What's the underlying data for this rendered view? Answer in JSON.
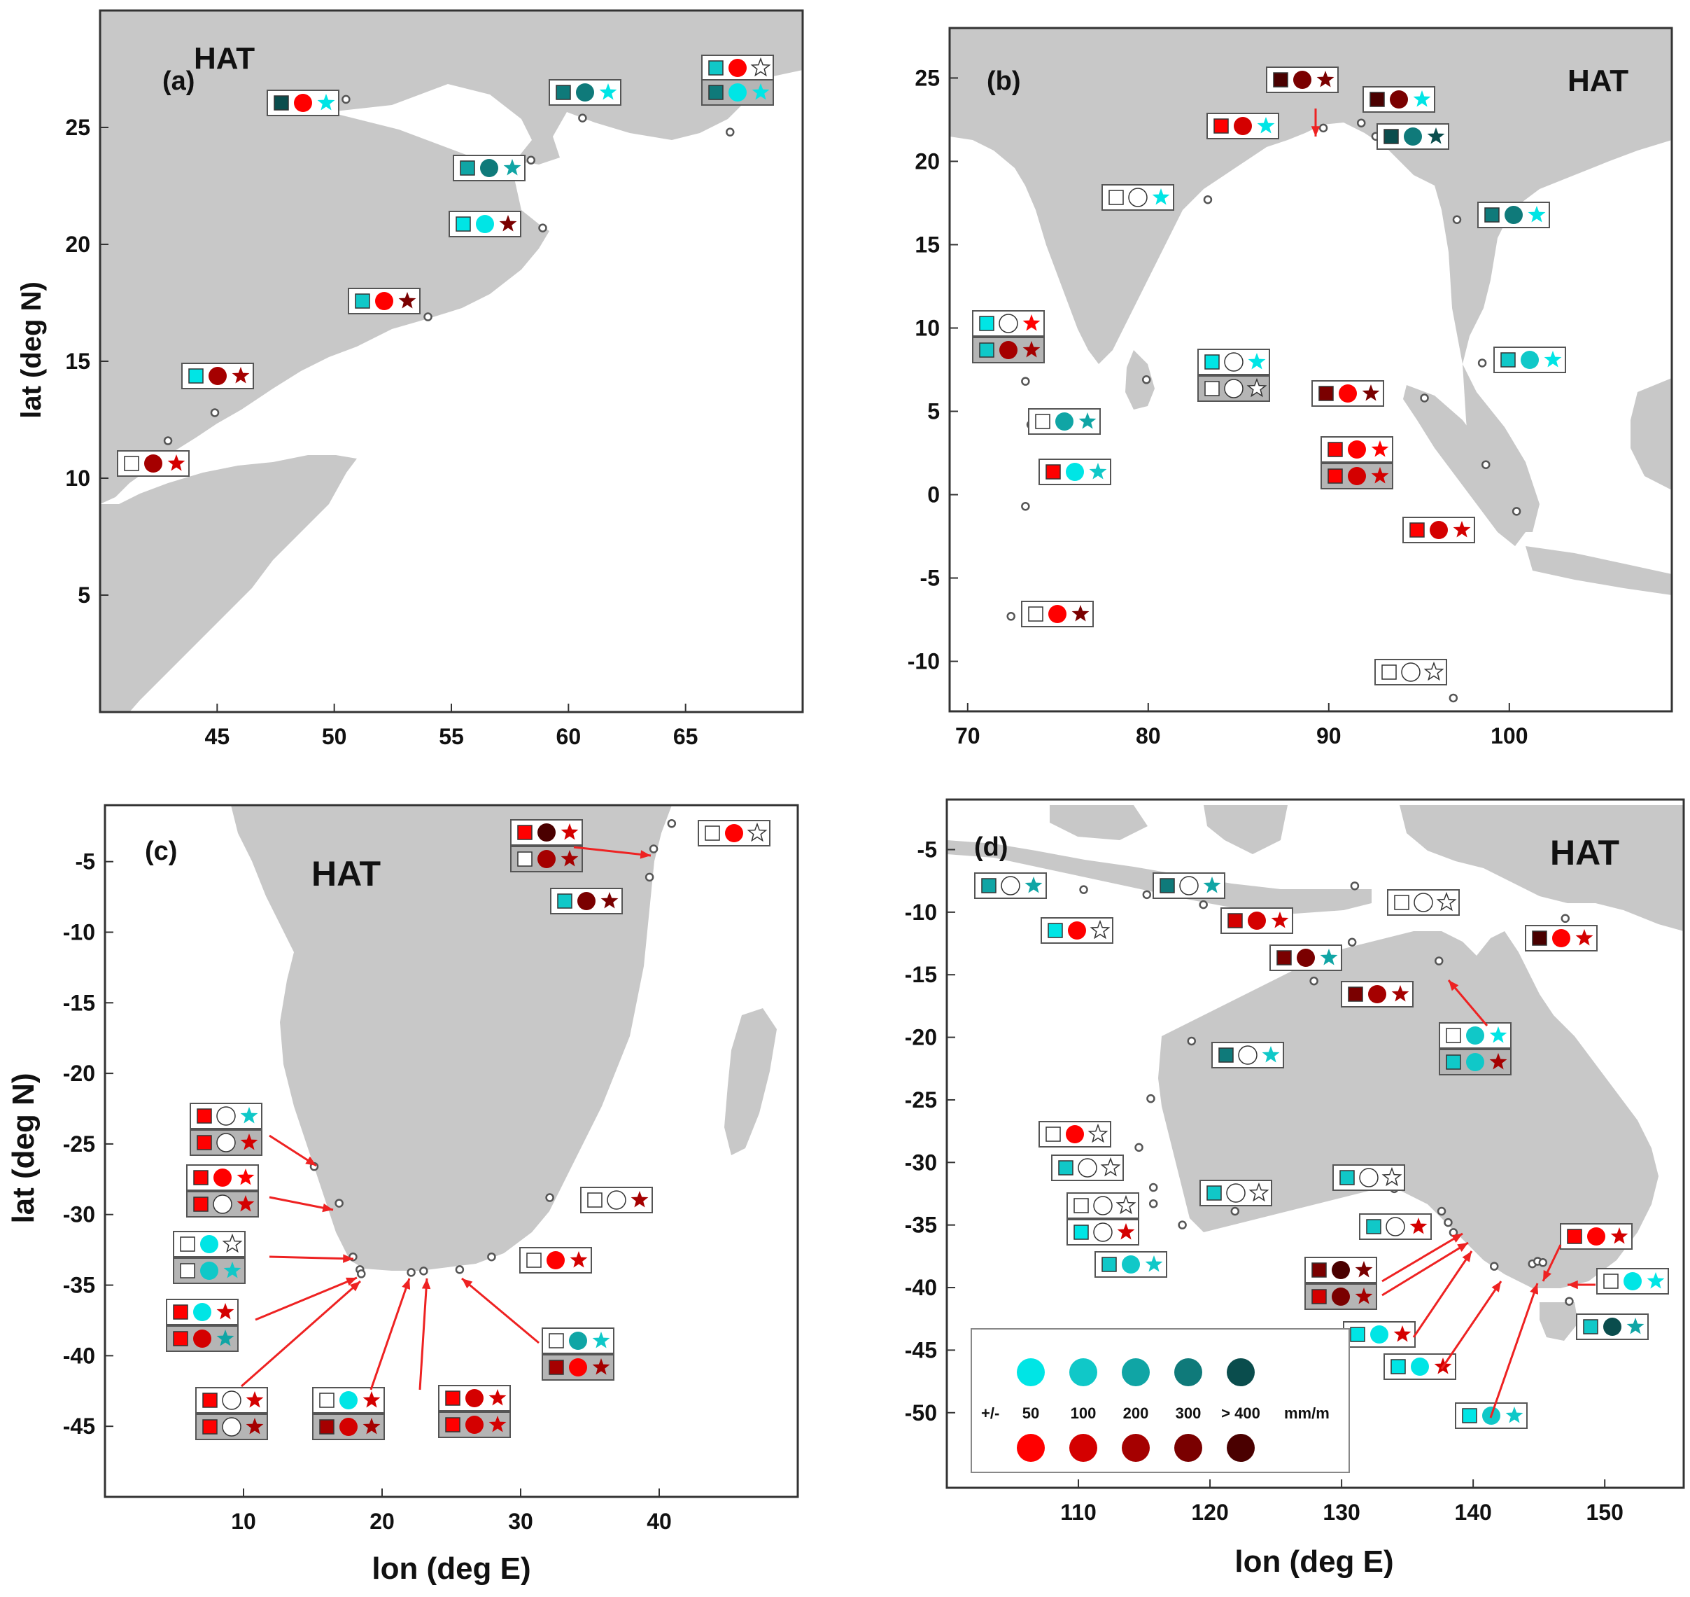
{
  "figure": {
    "title": "HAT"
  },
  "colors": {
    "land": "#c8c8c8",
    "sea": "#ffffff",
    "axis": "#333333",
    "arrow": "#ee2222",
    "station": "#555555",
    "cyan": [
      "#00e5e5",
      "#10c8c8",
      "#10a5a5",
      "#0f7a7a",
      "#0a4d4d"
    ],
    "red": [
      "#ff0000",
      "#d40000",
      "#a50000",
      "#7a0000",
      "#4a0000"
    ]
  },
  "axis_labels": {
    "lat": "lat (deg N)",
    "lon": "lon (deg E)"
  },
  "legend": {
    "prefix": "+/-",
    "values": [
      "50",
      "100",
      "200",
      "300",
      "> 400"
    ],
    "unit": "mm/m"
  },
  "chart_data": [
    {
      "type": "scatter",
      "panel": "a",
      "title": "HAT",
      "label": "(a)",
      "xlim": [
        40,
        70
      ],
      "ylim": [
        0,
        30
      ],
      "xticks": [
        45,
        50,
        55,
        60,
        65
      ],
      "yticks": [
        5,
        10,
        15,
        20,
        25
      ],
      "ylabel": "lat (deg N)",
      "xlabel": "",
      "stations": [
        [
          42.9,
          11.6
        ],
        [
          44.9,
          12.8
        ],
        [
          54.0,
          16.9
        ],
        [
          58.9,
          20.7
        ],
        [
          58.4,
          23.6
        ],
        [
          60.6,
          25.4
        ],
        [
          50.5,
          26.2
        ],
        [
          66.9,
          24.8
        ]
      ]
    },
    {
      "type": "scatter",
      "panel": "b",
      "title": "HAT",
      "label": "(b)",
      "xlim": [
        69,
        109
      ],
      "ylim": [
        -13,
        28
      ],
      "xticks": [
        70,
        80,
        90,
        100
      ],
      "yticks": [
        -10,
        -5,
        0,
        5,
        10,
        15,
        20,
        25
      ],
      "ylabel": "",
      "xlabel": "",
      "stations": [
        [
          83.3,
          17.7
        ],
        [
          89.7,
          22.0
        ],
        [
          91.8,
          22.3
        ],
        [
          92.6,
          21.5
        ],
        [
          97.1,
          16.5
        ],
        [
          98.5,
          7.9
        ],
        [
          79.9,
          6.9
        ],
        [
          73.2,
          6.8
        ],
        [
          73.5,
          4.2
        ],
        [
          73.2,
          -0.7
        ],
        [
          72.4,
          -7.3
        ],
        [
          95.3,
          5.8
        ],
        [
          98.7,
          1.8
        ],
        [
          100.4,
          -1.0
        ],
        [
          96.9,
          -12.2
        ]
      ]
    },
    {
      "type": "scatter",
      "panel": "c",
      "title": "HAT",
      "label": "(c)",
      "xlim": [
        0,
        50
      ],
      "ylim": [
        -50,
        -1
      ],
      "xticks": [
        10,
        20,
        30,
        40
      ],
      "yticks": [
        -5,
        -10,
        -15,
        -20,
        -25,
        -30,
        -35,
        -40,
        -45
      ],
      "ylabel": "lat (deg N)",
      "xlabel": "lon (deg E)",
      "stations": [
        [
          15.1,
          -26.6
        ],
        [
          16.9,
          -29.2
        ],
        [
          17.9,
          -33.0
        ],
        [
          18.4,
          -33.9
        ],
        [
          18.5,
          -34.2
        ],
        [
          22.1,
          -34.1
        ],
        [
          23.0,
          -34.0
        ],
        [
          25.6,
          -33.9
        ],
        [
          27.9,
          -33.0
        ],
        [
          32.1,
          -28.8
        ],
        [
          39.6,
          -4.1
        ],
        [
          39.3,
          -6.1
        ],
        [
          40.9,
          -2.3
        ]
      ]
    },
    {
      "type": "scatter",
      "panel": "d",
      "title": "HAT",
      "label": "(d)",
      "xlim": [
        100,
        156
      ],
      "ylim": [
        -56,
        -1
      ],
      "xticks": [
        110,
        120,
        130,
        140,
        150
      ],
      "yticks": [
        -5,
        -10,
        -15,
        -20,
        -25,
        -30,
        -35,
        -40,
        -45,
        -50
      ],
      "ylabel": "",
      "xlabel": "lon (deg E)",
      "stations": [
        [
          106.8,
          -7.6
        ],
        [
          110.4,
          -8.2
        ],
        [
          115.2,
          -8.6
        ],
        [
          119.5,
          -9.4
        ],
        [
          131.0,
          -7.9
        ],
        [
          130.8,
          -12.4
        ],
        [
          127.9,
          -15.5
        ],
        [
          137.4,
          -13.9
        ],
        [
          118.6,
          -20.3
        ],
        [
          115.5,
          -24.9
        ],
        [
          114.6,
          -28.8
        ],
        [
          115.7,
          -32.0
        ],
        [
          115.7,
          -33.3
        ],
        [
          117.9,
          -35.0
        ],
        [
          121.9,
          -33.9
        ],
        [
          134.0,
          -32.1
        ],
        [
          137.6,
          -33.9
        ],
        [
          138.1,
          -34.8
        ],
        [
          138.5,
          -35.6
        ],
        [
          141.6,
          -38.3
        ],
        [
          144.5,
          -38.1
        ],
        [
          144.9,
          -37.9
        ],
        [
          145.3,
          -38.0
        ],
        [
          147.3,
          -41.1
        ],
        [
          147.0,
          -10.5
        ]
      ]
    }
  ]
}
